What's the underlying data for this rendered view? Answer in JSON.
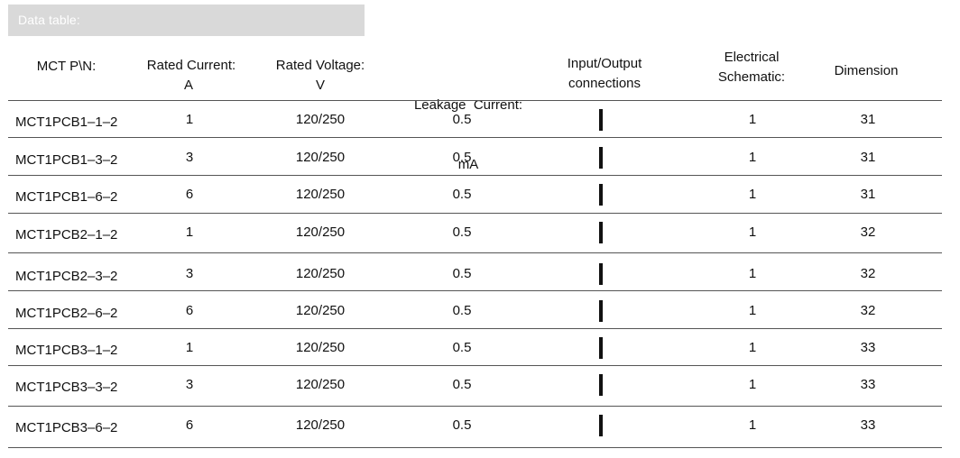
{
  "title": "Data table:",
  "headers": {
    "part": [
      "MCT P\\N:"
    ],
    "current": [
      "Rated Current:",
      "A"
    ],
    "voltage": [
      "Rated Voltage:",
      "V"
    ],
    "leakage": [
      "Leakage  Current:",
      "mA"
    ],
    "io": [
      "Input/Output",
      "connections"
    ],
    "schematic": [
      "Electrical",
      "Schematic:"
    ],
    "dimension": [
      "Dimension"
    ]
  },
  "rows": [
    {
      "pn": "MCT1PCB1–1–2",
      "current": "1",
      "voltage": "120/250",
      "leakage": "0.5",
      "schematic": "1",
      "dimension": "31"
    },
    {
      "pn": "MCT1PCB1–3–2",
      "current": "3",
      "voltage": "120/250",
      "leakage": "0.5",
      "schematic": "1",
      "dimension": "31"
    },
    {
      "pn": "MCT1PCB1–6–2",
      "current": "6",
      "voltage": "120/250",
      "leakage": "0.5",
      "schematic": "1",
      "dimension": "31"
    },
    {
      "pn": "MCT1PCB2–1–2",
      "current": "1",
      "voltage": "120/250",
      "leakage": "0.5",
      "schematic": "1",
      "dimension": "32"
    },
    {
      "pn": "MCT1PCB2–3–2",
      "current": "3",
      "voltage": "120/250",
      "leakage": "0.5",
      "schematic": "1",
      "dimension": "32"
    },
    {
      "pn": "MCT1PCB2–6–2",
      "current": "6",
      "voltage": "120/250",
      "leakage": "0.5",
      "schematic": "1",
      "dimension": "32"
    },
    {
      "pn": "MCT1PCB3–1–2",
      "current": "1",
      "voltage": "120/250",
      "leakage": "0.5",
      "schematic": "1",
      "dimension": "33"
    },
    {
      "pn": "MCT1PCB3–3–2",
      "current": "3",
      "voltage": "120/250",
      "leakage": "0.5",
      "schematic": "1",
      "dimension": "33"
    },
    {
      "pn": "MCT1PCB3–6–2",
      "current": "6",
      "voltage": "120/250",
      "leakage": "0.5",
      "schematic": "1",
      "dimension": "33"
    }
  ]
}
